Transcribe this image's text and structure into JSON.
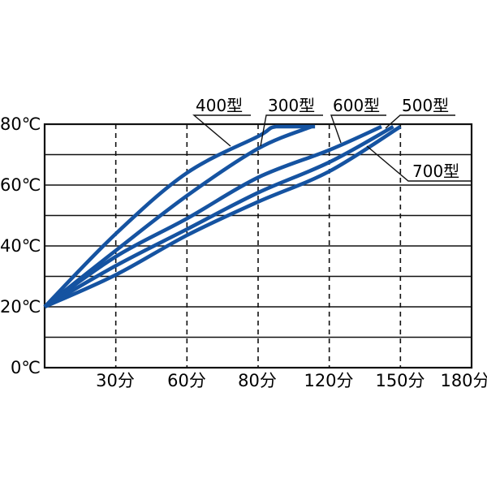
{
  "chart_data": {
    "type": "line",
    "title": "",
    "x_tick_values": [
      0,
      30,
      60,
      80,
      120,
      150,
      180
    ],
    "x_tick_labels": [
      "30分",
      "60分",
      "80分",
      "120分",
      "150分",
      "180分"
    ],
    "x_note": "tick spacing drawn uniformly although time intervals differ; origin tick is unlabeled",
    "y_tick_labels_top_to_bottom": [
      "80℃",
      "60℃",
      "40℃",
      "20℃",
      "0℃"
    ],
    "y_tick_values_top_to_bottom": [
      80,
      60,
      40,
      20,
      0
    ],
    "ylim": [
      0,
      80
    ],
    "y_gridline_step": 10,
    "grid": "solid horizontal line every 10°C; dashed vertical line at each labeled time tick",
    "legend_position": "callout labels with leader lines pointing at each curve",
    "series": [
      {
        "name": "400型",
        "points_time_min_temp_c": [
          [
            0,
            20
          ],
          [
            30,
            44
          ],
          [
            60,
            64
          ],
          [
            80,
            76
          ],
          [
            90,
            80
          ],
          [
            112,
            80
          ]
        ]
      },
      {
        "name": "300型",
        "points_time_min_temp_c": [
          [
            0,
            20
          ],
          [
            30,
            38.5
          ],
          [
            60,
            56.5
          ],
          [
            80,
            72
          ],
          [
            110,
            80
          ]
        ]
      },
      {
        "name": "600型",
        "points_time_min_temp_c": [
          [
            0,
            20
          ],
          [
            30,
            36.5
          ],
          [
            60,
            49
          ],
          [
            80,
            62.5
          ],
          [
            120,
            71.5
          ],
          [
            142,
            80
          ]
        ]
      },
      {
        "name": "500型",
        "points_time_min_temp_c": [
          [
            0,
            20
          ],
          [
            30,
            33.5
          ],
          [
            60,
            45.5
          ],
          [
            80,
            57.5
          ],
          [
            120,
            67.5
          ],
          [
            147,
            80
          ]
        ]
      },
      {
        "name": "700型",
        "points_time_min_temp_c": [
          [
            0,
            20
          ],
          [
            30,
            30.5
          ],
          [
            60,
            43.5
          ],
          [
            80,
            54.5
          ],
          [
            120,
            64.5
          ],
          [
            150,
            80
          ]
        ]
      }
    ],
    "colors": {
      "curve": "#1553a1",
      "grid": "#111111",
      "text": "#000000",
      "background": "#ffffff"
    }
  }
}
